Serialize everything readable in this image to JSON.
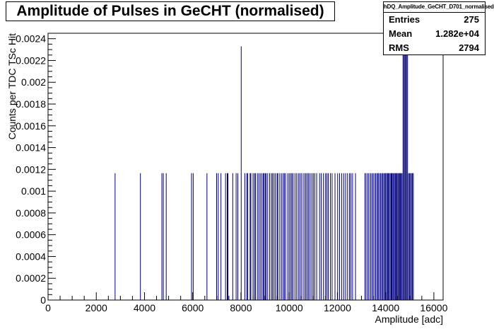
{
  "title": "Amplitude of Pulses in GeCHT (normalised)",
  "stats": {
    "name": "hDQ_Amplitude_GeCHT_D701_normalised",
    "rows": [
      {
        "label": "Entries",
        "value": "275"
      },
      {
        "label": "Mean",
        "value": "1.282e+04"
      },
      {
        "label": "RMS",
        "value": "2794"
      }
    ]
  },
  "colors": {
    "bars": "#00007f",
    "frame": "#000000"
  },
  "chart_data": {
    "type": "bar",
    "title": "Amplitude of Pulses in GeCHT (normalised)",
    "xlabel": "Amplitude [adc]",
    "ylabel": "Counts per TDC TSc Hit",
    "xlim": [
      0,
      16384
    ],
    "ylim": [
      0,
      0.00245
    ],
    "grid": false,
    "xticks": [
      0,
      2000,
      4000,
      6000,
      8000,
      10000,
      12000,
      14000,
      16000
    ],
    "xtick_labels": [
      "0",
      "2000",
      "4000",
      "6000",
      "8000",
      "10000",
      "12000",
      "14000",
      "16000"
    ],
    "yticks": [
      0,
      0.0002,
      0.0004,
      0.0006,
      0.0008,
      0.001,
      0.0012,
      0.0014,
      0.0016,
      0.0018,
      0.002,
      0.0022,
      0.0024
    ],
    "ytick_labels": [
      "0",
      "0.0002",
      "0.0004",
      "0.0006",
      "0.0008",
      "0.001",
      "0.0012",
      "0.0014",
      "0.0016",
      "0.0018",
      "0.002",
      "0.0022",
      "0.0024"
    ],
    "bin_width": 16,
    "series": [
      {
        "x": [
          2780,
          3830,
          4720,
          4780,
          4900,
          5950,
          6020,
          6590,
          6990,
          7060,
          7170,
          7360,
          7430,
          7460,
          7660,
          7800,
          7870,
          8010,
          8160,
          8240,
          8280,
          8380,
          8410,
          8500,
          8560,
          8600,
          8680,
          8740,
          8800,
          8870,
          8930,
          8960,
          9010,
          9050,
          9110,
          9190,
          9260,
          9310,
          9370,
          9430,
          9500,
          9530,
          9610,
          9680,
          9750,
          9800,
          9850,
          9940,
          10000,
          10060,
          10110,
          10160,
          10240,
          10310,
          10380,
          10440,
          10500,
          10580,
          10650,
          10700,
          10760,
          10810,
          10870,
          10940,
          11000,
          11060,
          11140,
          11260,
          11330,
          11420,
          11500,
          11560,
          11620,
          11710,
          11780,
          11900,
          12010,
          12090,
          12180,
          12260,
          12340,
          12420,
          12500,
          12560,
          12630,
          12750,
          13140,
          13190,
          13260,
          13310,
          13380,
          13440,
          13490,
          13560,
          13600,
          13660,
          13690,
          13740,
          13790,
          13840,
          13870,
          13920,
          13960,
          14000,
          14040,
          14080,
          14110,
          14150,
          14190,
          14230,
          14260,
          14300,
          14330,
          14370,
          14410,
          14440,
          14470,
          14510,
          14540,
          14580,
          14610,
          14650,
          14680,
          14720,
          14760,
          14800,
          14830,
          14870,
          14910,
          14950,
          14990,
          15030,
          15070,
          15110,
          15150
        ],
        "values": [
          0.001165,
          0.001165,
          0.001165,
          0.001165,
          0.001165,
          0.001165,
          0.001165,
          0.001165,
          0.001165,
          0.001165,
          0.001165,
          0.001165,
          0.001165,
          0.001165,
          0.001165,
          0.001165,
          0.001165,
          0.00233,
          0.001165,
          0.001165,
          0.001165,
          0.001165,
          0.001165,
          0.001165,
          0.001165,
          0.001165,
          0.001165,
          0.001165,
          0.001165,
          0.001165,
          0.001165,
          0.001165,
          0.001165,
          0.001165,
          0.001165,
          0.001165,
          0.001165,
          0.001165,
          0.001165,
          0.001165,
          0.001165,
          0.001165,
          0.001165,
          0.001165,
          0.001165,
          0.001165,
          0.001165,
          0.001165,
          0.001165,
          0.001165,
          0.001165,
          0.001165,
          0.001165,
          0.001165,
          0.001165,
          0.001165,
          0.001165,
          0.001165,
          0.001165,
          0.001165,
          0.001165,
          0.001165,
          0.001165,
          0.001165,
          0.001165,
          0.001165,
          0.001165,
          0.001165,
          0.001165,
          0.001165,
          0.001165,
          0.001165,
          0.001165,
          0.001165,
          0.001165,
          0.001165,
          0.001165,
          0.001165,
          0.001165,
          0.001165,
          0.001165,
          0.001165,
          0.001165,
          0.001165,
          0.001165,
          0.001165,
          0.001165,
          0.001165,
          0.001165,
          0.001165,
          0.001165,
          0.001165,
          0.001165,
          0.001165,
          0.001165,
          0.001165,
          0.001165,
          0.001165,
          0.001165,
          0.001165,
          0.001165,
          0.001165,
          0.001165,
          0.001165,
          0.001165,
          0.001165,
          0.001165,
          0.001165,
          0.001165,
          0.001165,
          0.001165,
          0.001165,
          0.001165,
          0.001165,
          0.001165,
          0.001165,
          0.001165,
          0.001165,
          0.001165,
          0.001165,
          0.001165,
          0.001165,
          0.001165,
          0.00233,
          0.00245,
          0.00233,
          0.00245,
          0.00233,
          0.00245,
          0.001165,
          0.001165,
          0.001165,
          0.001165,
          0.001165,
          0.001165
        ]
      }
    ]
  }
}
